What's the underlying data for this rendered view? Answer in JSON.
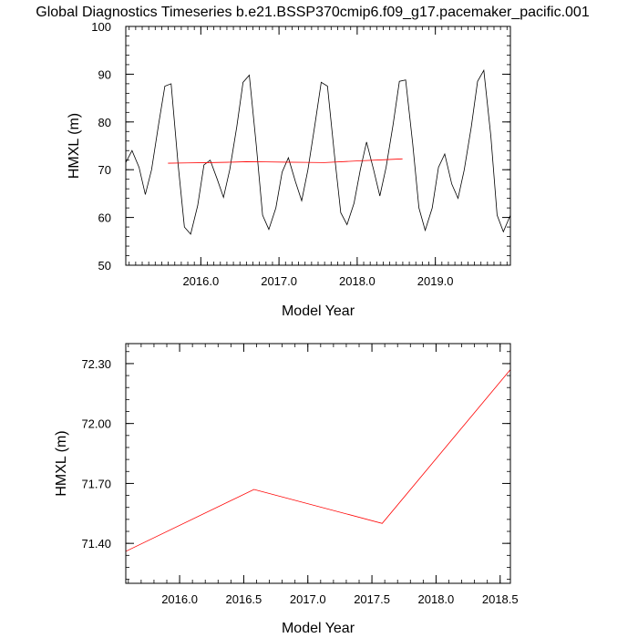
{
  "title": "Global Diagnostics Timeseries b.e21.BSSP370cmip6.f09_g17.pacemaker_pacific.001",
  "chart_data": [
    {
      "type": "line",
      "xlabel": "Model Year",
      "ylabel": "HMXL (m)",
      "xlim": [
        2015.04,
        2019.96
      ],
      "ylim": [
        50,
        100
      ],
      "xticks": [
        2016.0,
        2017.0,
        2018.0,
        2019.0
      ],
      "xtick_labels": [
        "2016.0",
        "2017.0",
        "2018.0",
        "2019.0"
      ],
      "yticks": [
        50,
        60,
        70,
        80,
        90,
        100
      ],
      "ytick_labels": [
        "50",
        "60",
        "70",
        "80",
        "90",
        "100"
      ],
      "series": [
        {
          "color": "#000000",
          "x": [
            2015.04,
            2015.12,
            2015.21,
            2015.29,
            2015.37,
            2015.46,
            2015.54,
            2015.62,
            2015.71,
            2015.79,
            2015.87,
            2015.96,
            2016.04,
            2016.12,
            2016.21,
            2016.29,
            2016.37,
            2016.46,
            2016.54,
            2016.62,
            2016.71,
            2016.79,
            2016.87,
            2016.96,
            2017.04,
            2017.12,
            2017.21,
            2017.29,
            2017.37,
            2017.46,
            2017.54,
            2017.62,
            2017.71,
            2017.79,
            2017.87,
            2017.96,
            2018.04,
            2018.12,
            2018.21,
            2018.29,
            2018.37,
            2018.46,
            2018.54,
            2018.62,
            2018.71,
            2018.79,
            2018.87,
            2018.96,
            2019.04,
            2019.12,
            2019.21,
            2019.29,
            2019.37,
            2019.46,
            2019.54,
            2019.62,
            2019.71,
            2019.79,
            2019.87,
            2019.96
          ],
          "y": [
            71.5,
            74.0,
            70.5,
            64.8,
            70.0,
            79.5,
            87.5,
            88.0,
            71.0,
            58.0,
            56.5,
            62.5,
            71.0,
            72.0,
            68.0,
            64.2,
            70.0,
            79.0,
            88.3,
            89.8,
            75.0,
            60.5,
            57.5,
            62.0,
            69.5,
            72.5,
            67.5,
            63.5,
            70.0,
            79.5,
            88.3,
            87.5,
            73.0,
            61.0,
            58.5,
            63.0,
            70.0,
            75.8,
            70.0,
            64.5,
            70.5,
            79.5,
            88.5,
            88.8,
            75.5,
            62.0,
            57.3,
            62.0,
            70.5,
            73.3,
            67.0,
            64.0,
            70.0,
            79.0,
            88.5,
            90.8,
            77.0,
            60.5,
            57.0,
            60.5
          ]
        },
        {
          "color": "#ff0000",
          "x": [
            2015.58,
            2015.83,
            2016.08,
            2016.33,
            2016.58,
            2016.83,
            2017.08,
            2017.33,
            2017.58,
            2017.83,
            2018.08,
            2018.33,
            2018.58
          ],
          "y": [
            71.36,
            71.42,
            71.48,
            71.55,
            71.67,
            71.63,
            71.58,
            71.54,
            71.5,
            71.7,
            71.9,
            72.08,
            72.27
          ]
        }
      ]
    },
    {
      "type": "line",
      "xlabel": "Model Year",
      "ylabel": "HMXL (m)",
      "xlim": [
        2015.58,
        2018.58
      ],
      "ylim": [
        71.2,
        72.4
      ],
      "xticks": [
        2016.0,
        2016.5,
        2017.0,
        2017.5,
        2018.0,
        2018.5
      ],
      "xtick_labels": [
        "2016.0",
        "2016.5",
        "2017.0",
        "2017.5",
        "2018.0",
        "2018.5"
      ],
      "yticks": [
        71.4,
        71.7,
        72.0,
        72.3
      ],
      "ytick_labels": [
        "71.40",
        "71.70",
        "72.00",
        "72.30"
      ],
      "series": [
        {
          "color": "#ff0000",
          "x": [
            2015.58,
            2016.58,
            2017.58,
            2018.58
          ],
          "y": [
            71.36,
            71.67,
            71.5,
            72.27
          ]
        }
      ]
    }
  ]
}
